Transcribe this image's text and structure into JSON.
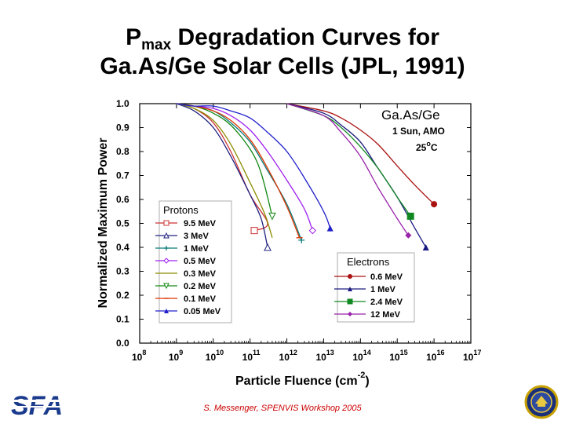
{
  "slide": {
    "title_main": "P",
    "title_sub": "max",
    "title_rest": " Degradation Curves for",
    "title_line2": "Ga.As/Ge Solar Cells (JPL, 1991)",
    "footer": "S. Messenger, SPENVIS Workshop 2005",
    "left_logo": "SFA",
    "right_logo_icon": "navy-seal-icon"
  },
  "chart_data": {
    "type": "line",
    "ylabel": "Normalized Maximum Power",
    "xlabel": "Particle Fluence (cm",
    "xlabel_exp": "-2",
    "xlabel_close": ")",
    "xscale": "log",
    "xlim": [
      100000000.0,
      1e+17
    ],
    "ylim": [
      0.0,
      1.0
    ],
    "x_ticks": [
      {
        "base": "10",
        "exp": "8"
      },
      {
        "base": "10",
        "exp": "9"
      },
      {
        "base": "10",
        "exp": "10"
      },
      {
        "base": "10",
        "exp": "11"
      },
      {
        "base": "10",
        "exp": "12"
      },
      {
        "base": "10",
        "exp": "13"
      },
      {
        "base": "10",
        "exp": "14"
      },
      {
        "base": "10",
        "exp": "15"
      },
      {
        "base": "10",
        "exp": "16"
      },
      {
        "base": "10",
        "exp": "17"
      }
    ],
    "y_ticks": [
      "0.0",
      "0.1",
      "0.2",
      "0.3",
      "0.4",
      "0.5",
      "0.6",
      "0.7",
      "0.8",
      "0.9",
      "1.0"
    ],
    "annotation": {
      "title": "Ga.As/Ge",
      "line1": "1 Sun, AMO",
      "line2_a": "25",
      "line2_sup": "o",
      "line2_b": "C"
    },
    "grid": false,
    "proton_legend_title": "Protons",
    "electron_legend_title": "Electrons",
    "series": [
      {
        "name": "9.5 MeV",
        "group": "Protons",
        "color": "#cc3333",
        "marker": "square-open",
        "x": [
          1000000000.0,
          3000000000.0,
          10000000000.0,
          30000000000.0,
          100000000000.0,
          300000000000.0,
          130000000000.0
        ],
        "y": [
          1.0,
          0.98,
          0.92,
          0.8,
          0.62,
          0.5,
          0.47
        ]
      },
      {
        "name": "3 MeV",
        "group": "Protons",
        "color": "#202080",
        "marker": "triangle-open",
        "x": [
          1000000000.0,
          3000000000.0,
          10000000000.0,
          30000000000.0,
          100000000000.0,
          200000000000.0,
          300000000000.0
        ],
        "y": [
          1.0,
          0.97,
          0.9,
          0.78,
          0.62,
          0.52,
          0.4
        ]
      },
      {
        "name": "1 MeV",
        "group": "Protons",
        "color": "#0b7b7b",
        "marker": "plus",
        "x": [
          1000000000.0,
          3000000000.0,
          10000000000.0,
          30000000000.0,
          100000000000.0,
          300000000000.0,
          1000000000000.0,
          2500000000000.0
        ],
        "y": [
          1.0,
          0.99,
          0.97,
          0.92,
          0.84,
          0.72,
          0.58,
          0.43
        ]
      },
      {
        "name": "0.5 MeV",
        "group": "Protons",
        "color": "#a020f0",
        "marker": "diamond-open",
        "x": [
          1000000000.0,
          3000000000.0,
          10000000000.0,
          30000000000.0,
          100000000000.0,
          300000000000.0,
          1000000000000.0,
          3000000000000.0,
          5000000000000.0
        ],
        "y": [
          1.0,
          0.99,
          0.98,
          0.95,
          0.89,
          0.8,
          0.68,
          0.56,
          0.47
        ]
      },
      {
        "name": "0.3 MeV",
        "group": "Protons",
        "color": "#8c8c00",
        "marker": "none",
        "x": [
          1000000000.0,
          3000000000.0,
          10000000000.0,
          30000000000.0,
          100000000000.0,
          250000000000.0,
          400000000000.0
        ],
        "y": [
          1.0,
          0.98,
          0.93,
          0.83,
          0.67,
          0.54,
          0.44
        ]
      },
      {
        "name": "0.2 MeV",
        "group": "Protons",
        "color": "#118811",
        "marker": "triangle-down-open",
        "x": [
          1000000000.0,
          3000000000.0,
          10000000000.0,
          30000000000.0,
          100000000000.0,
          200000000000.0,
          400000000000.0
        ],
        "y": [
          1.0,
          0.99,
          0.96,
          0.91,
          0.81,
          0.71,
          0.53
        ]
      },
      {
        "name": "0.1 MeV",
        "group": "Protons",
        "color": "#dd3300",
        "marker": "dash",
        "x": [
          1000000000.0,
          3000000000.0,
          10000000000.0,
          30000000000.0,
          100000000000.0,
          300000000000.0,
          1000000000000.0,
          2200000000000.0
        ],
        "y": [
          1.0,
          0.99,
          0.97,
          0.93,
          0.85,
          0.73,
          0.57,
          0.44
        ]
      },
      {
        "name": "0.05 MeV",
        "group": "Protons",
        "color": "#2020cc",
        "marker": "triangle-filled",
        "x": [
          1000000000.0,
          3000000000.0,
          10000000000.0,
          30000000000.0,
          100000000000.0,
          300000000000.0,
          1000000000000.0,
          3000000000000.0,
          10000000000000.0,
          15000000000000.0
        ],
        "y": [
          1.0,
          0.99,
          0.99,
          0.97,
          0.94,
          0.88,
          0.8,
          0.69,
          0.55,
          0.48
        ]
      },
      {
        "name": "0.6 MeV",
        "group": "Electrons",
        "color": "#aa1111",
        "marker": "circle-filled",
        "x": [
          1000000000000.0,
          10000000000000.0,
          30000000000000.0,
          100000000000000.0,
          300000000000000.0,
          1000000000000000.0,
          3000000000000000.0,
          1e+16
        ],
        "y": [
          1.0,
          0.97,
          0.94,
          0.89,
          0.83,
          0.74,
          0.66,
          0.58
        ]
      },
      {
        "name": "1 MeV",
        "group": "Electrons",
        "color": "#1a1a80",
        "marker": "triangle-filled",
        "x": [
          1000000000000.0,
          10000000000000.0,
          30000000000000.0,
          100000000000000.0,
          300000000000000.0,
          1000000000000000.0,
          3000000000000000.0,
          6000000000000000.0
        ],
        "y": [
          1.0,
          0.96,
          0.91,
          0.84,
          0.73,
          0.61,
          0.48,
          0.4
        ]
      },
      {
        "name": "2.4 MeV",
        "group": "Electrons",
        "color": "#118822",
        "marker": "square-filled",
        "x": [
          1000000000000.0,
          10000000000000.0,
          30000000000000.0,
          100000000000000.0,
          300000000000000.0,
          1000000000000000.0,
          2300000000000000.0
        ],
        "y": [
          1.0,
          0.95,
          0.9,
          0.82,
          0.73,
          0.61,
          0.53
        ]
      },
      {
        "name": "12 MeV",
        "group": "Electrons",
        "color": "#9922aa",
        "marker": "diamond-filled",
        "x": [
          1000000000000.0,
          10000000000000.0,
          30000000000000.0,
          100000000000000.0,
          300000000000000.0,
          1000000000000000.0,
          2000000000000000.0
        ],
        "y": [
          1.0,
          0.95,
          0.88,
          0.78,
          0.65,
          0.52,
          0.45
        ]
      }
    ]
  }
}
